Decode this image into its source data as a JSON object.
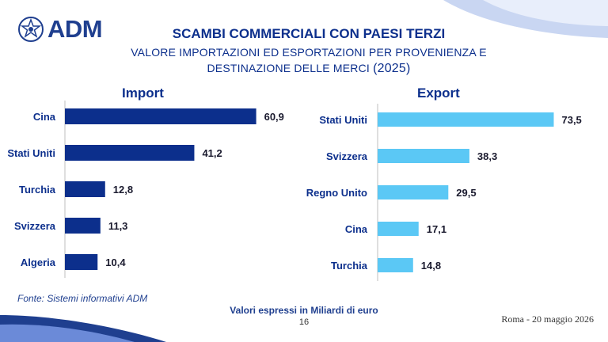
{
  "header": {
    "logo_text": "ADM",
    "title": "SCAMBI COMMERCIALI CON PAESI TERZI",
    "subtitle_line1": "VALORE IMPORTAZIONI ED ESPORTAZIONI PER PROVENIENZA E",
    "subtitle_line2": "DESTINAZIONE DELLE MERCI",
    "subtitle_year": "(2025)"
  },
  "colors": {
    "import_bar": "#0c2f8c",
    "export_bar": "#5bc8f5",
    "text": "#0c2f8c"
  },
  "chart_data": [
    {
      "type": "bar",
      "orientation": "horizontal",
      "title": "Import",
      "categories": [
        "Cina",
        "Stati Uniti",
        "Turchia",
        "Svizzera",
        "Algeria"
      ],
      "values": [
        60.9,
        41.2,
        12.8,
        11.3,
        10.4
      ],
      "value_labels": [
        "60,9",
        "41,2",
        "12,8",
        "11,3",
        "10,4"
      ],
      "color": "#0c2f8c",
      "xlim": [
        0,
        61
      ]
    },
    {
      "type": "bar",
      "orientation": "horizontal",
      "title": "Export",
      "categories": [
        "Stati Uniti",
        "Svizzera",
        "Regno Unito",
        "Cina",
        "Turchia"
      ],
      "values": [
        73.5,
        38.3,
        29.5,
        17.1,
        14.8
      ],
      "value_labels": [
        "73,5",
        "38,3",
        "29,5",
        "17,1",
        "14,8"
      ],
      "color": "#5bc8f5",
      "xlim": [
        0,
        74
      ]
    }
  ],
  "footer": {
    "source": "Fonte: Sistemi informativi ADM",
    "note": "Valori espressi in Miliardi di euro",
    "page": "16",
    "place_date": "Roma - 20 maggio 2026"
  }
}
